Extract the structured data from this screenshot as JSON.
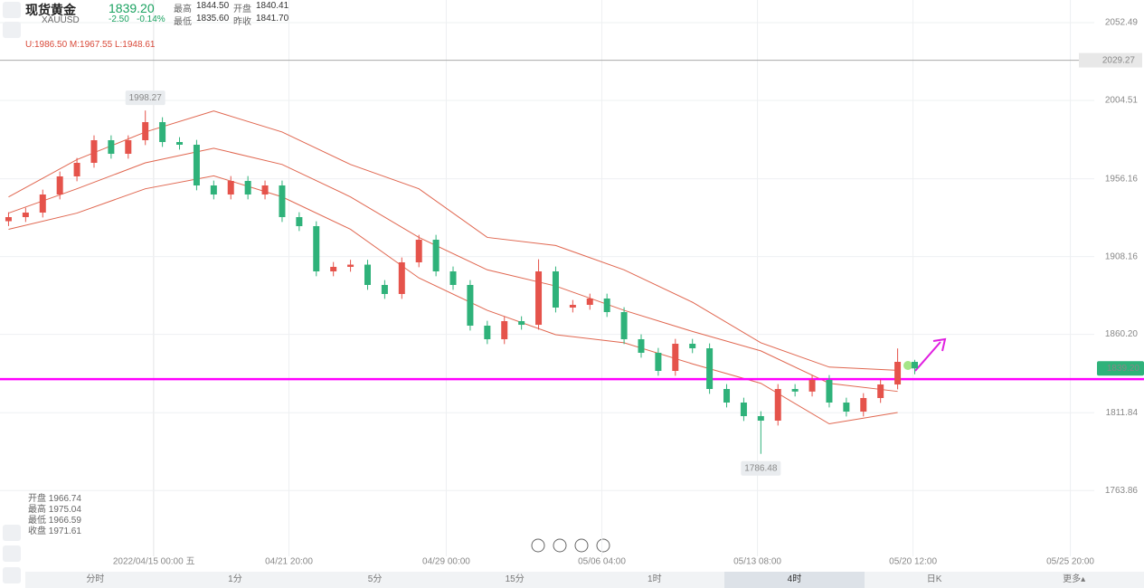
{
  "header": {
    "name": "现货黄金",
    "symbol": "XAUUSD",
    "price": "1839.20",
    "change": "-2.50",
    "change_pct": "-0.14%",
    "stats": [
      [
        "最高",
        "1844.50"
      ],
      [
        "开盘",
        "1840.41"
      ],
      [
        "最低",
        "1835.60"
      ],
      [
        "昨收",
        "1841.70"
      ]
    ]
  },
  "bands_label": "U:1986.50  M:1967.55  L:1948.61",
  "info": [
    "开盘 1966.74",
    "最高 1975.04",
    "最低 1966.59",
    "收盘 1971.61"
  ],
  "tabs": [
    "分时",
    "1分",
    "5分",
    "15分",
    "1时",
    "4时",
    "日K",
    "更多▴"
  ],
  "chart_data": {
    "type": "candlestick",
    "up_color": "#e5534b",
    "down_color": "#2fb27a",
    "xlim": [
      -0.5,
      63.5
    ],
    "ylim": [
      1723.27,
      2066.44
    ],
    "yticks": [
      2052.49,
      2004.51,
      1956.16,
      1908.16,
      {
        "value": 1860.2,
        "label": "1860.20"
      },
      1811.84,
      1763.86
    ],
    "xticks": [
      {
        "value": 8.5,
        "label": "2022/04/15 00:00 五"
      },
      {
        "value": 16.4,
        "label": "04/21 20:00"
      },
      {
        "value": 25.6,
        "label": "04/29 00:00"
      },
      {
        "value": 34.7,
        "label": "05/06 04:00"
      },
      {
        "value": 43.8,
        "label": "05/13 08:00"
      },
      {
        "value": 52.9,
        "label": "05/20 12:00"
      },
      {
        "value": 62.1,
        "label": "05/25 20:00"
      }
    ],
    "grid": true,
    "open": [
      1930,
      1932.52,
      1935.31,
      1946.47,
      1957.63,
      1966,
      1979.95,
      1971.58,
      1979.95,
      1991.11,
      1978.83,
      1977.16,
      1952.05,
      1946.47,
      1954.84,
      1946.47,
      1952.05,
      1932.52,
      1926.94,
      1899.04,
      1901.83,
      1903.2,
      1890.67,
      1885.09,
      1904.62,
      1918.57,
      1899.04,
      1890.67,
      1865.56,
      1857.19,
      1868.35,
      1866.1,
      1899.04,
      1876.72,
      1878.4,
      1882.3,
      1873.93,
      1857.19,
      1848.82,
      1837.66,
      1854.4,
      1851.61,
      1826.5,
      1818.13,
      1809.76,
      1806.97,
      1826.5,
      1824.9,
      1832.08,
      1818.13,
      1812.55,
      1820.92,
      1829.29,
      1843.24
    ],
    "high": [
      1935.52,
      1938.31,
      1949.47,
      1960.63,
      1969,
      1982.95,
      1982.95,
      1982.95,
      1998.27,
      1994.11,
      1981.83,
      1980.16,
      1955.05,
      1957.84,
      1957.84,
      1955.05,
      1955.05,
      1935.52,
      1929.94,
      1904.83,
      1906.2,
      1906.2,
      1893.67,
      1907.62,
      1921.57,
      1921.57,
      1902.04,
      1893.67,
      1868.56,
      1871.35,
      1871.35,
      1906.5,
      1902.04,
      1881.4,
      1885.3,
      1885.3,
      1876.93,
      1860.19,
      1851.82,
      1857.4,
      1857.4,
      1854.61,
      1829.5,
      1821.13,
      1812.76,
      1829.5,
      1829.5,
      1835.08,
      1835.08,
      1821.13,
      1823.92,
      1832.29,
      1851.5,
      1844.5
    ],
    "low": [
      1927,
      1929.52,
      1932.31,
      1943.47,
      1954.63,
      1963,
      1968.58,
      1968.58,
      1976.95,
      1975.83,
      1974.16,
      1949.05,
      1943.47,
      1943.47,
      1943.47,
      1943.47,
      1929.52,
      1923.94,
      1896.04,
      1896.04,
      1898.83,
      1887.67,
      1882.09,
      1882.09,
      1901.62,
      1896.04,
      1887.67,
      1862.56,
      1854.19,
      1854.19,
      1863.1,
      1863.1,
      1873.72,
      1873.72,
      1875.4,
      1870.93,
      1854.19,
      1845.82,
      1834.66,
      1834.66,
      1848.61,
      1823.5,
      1815.13,
      1806.76,
      1786.48,
      1803.97,
      1821.9,
      1821.9,
      1815.13,
      1809.55,
      1809.55,
      1817.92,
      1826.29,
      1835.6
    ],
    "close": [
      1932.52,
      1935.31,
      1946.47,
      1957.63,
      1966,
      1979.95,
      1971.58,
      1979.95,
      1991.11,
      1978.83,
      1977.16,
      1952.05,
      1946.47,
      1954.84,
      1946.47,
      1952.05,
      1932.52,
      1926.94,
      1899.04,
      1901.83,
      1903.2,
      1890.67,
      1885.09,
      1904.62,
      1918.57,
      1899.04,
      1890.67,
      1865.56,
      1857.19,
      1868.35,
      1866.1,
      1899.04,
      1876.72,
      1878.4,
      1882.3,
      1873.93,
      1857.19,
      1848.82,
      1837.66,
      1854.4,
      1851.61,
      1826.5,
      1818.13,
      1809.76,
      1806.97,
      1826.5,
      1824.9,
      1832.08,
      1818.13,
      1812.55,
      1820.92,
      1829.29,
      1843.24,
      1839.2
    ],
    "bands": {
      "color": "#e0664f",
      "x": [
        0,
        4,
        8,
        12,
        16,
        20,
        24,
        28,
        32,
        36,
        40,
        44,
        48,
        52
      ],
      "upper": [
        1945,
        1968,
        1985,
        1998,
        1985,
        1965,
        1950,
        1920,
        1915,
        1900,
        1880,
        1855,
        1840,
        1838
      ],
      "middle": [
        1935,
        1950,
        1966,
        1975,
        1965,
        1945,
        1920,
        1900,
        1890,
        1875,
        1862,
        1850,
        1830,
        1825
      ],
      "lower": [
        1925,
        1935,
        1950,
        1958,
        1945,
        1925,
        1895,
        1875,
        1860,
        1855,
        1842,
        1830,
        1805,
        1812
      ]
    },
    "annotations": [
      {
        "index": 8,
        "value": 1998.27,
        "label": "1998.27",
        "side": "top"
      },
      {
        "index": 44,
        "value": 1786.48,
        "label": "1786.48",
        "side": "bottom"
      }
    ],
    "alert_line": {
      "value": 2029.27,
      "label": "2029.27"
    },
    "last_price": {
      "value": 1839.2,
      "label": "1839.20"
    },
    "support_line": {
      "value": 1832.6,
      "color": "#ff00ff"
    }
  }
}
